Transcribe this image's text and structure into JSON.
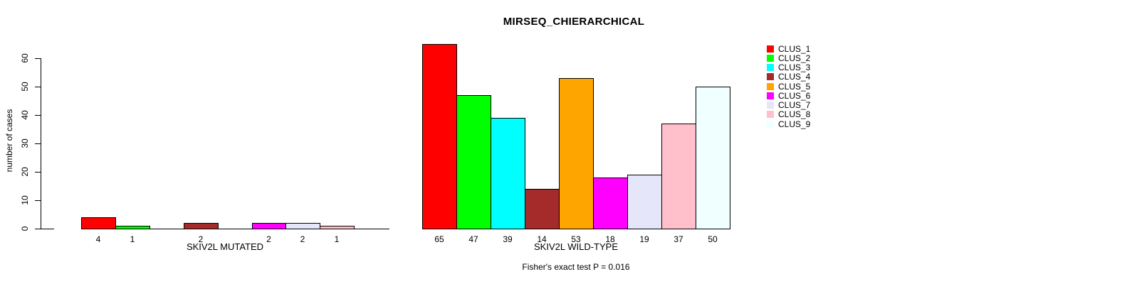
{
  "chart_data": {
    "type": "bar",
    "title": "MIRSEQ_CHIERARCHICAL",
    "ylabel": "number of cases",
    "ylim": [
      0,
      65
    ],
    "yticks": [
      0,
      10,
      20,
      30,
      40,
      50,
      60
    ],
    "grid": false,
    "legend_position": "right",
    "categories": [
      "CLUS_1",
      "CLUS_2",
      "CLUS_3",
      "CLUS_4",
      "CLUS_5",
      "CLUS_6",
      "CLUS_7",
      "CLUS_8",
      "CLUS_9"
    ],
    "palette": [
      "#FF0000",
      "#00FF00",
      "#00FFFF",
      "#A52A2A",
      "#FFA500",
      "#FF00FF",
      "#E6E6FA",
      "#FFC0CB",
      "#F0FFFF"
    ],
    "groups": [
      {
        "name": "SKIV2L MUTATED",
        "values": [
          4,
          1,
          0,
          2,
          0,
          2,
          2,
          1,
          0
        ]
      },
      {
        "name": "SKIV2L WILD-TYPE",
        "values": [
          65,
          47,
          39,
          14,
          53,
          18,
          19,
          37,
          50
        ]
      }
    ],
    "bar_labels_rule": "value shown under each nonzero bar",
    "annotation": "Fisher's exact test P = 0.016"
  }
}
